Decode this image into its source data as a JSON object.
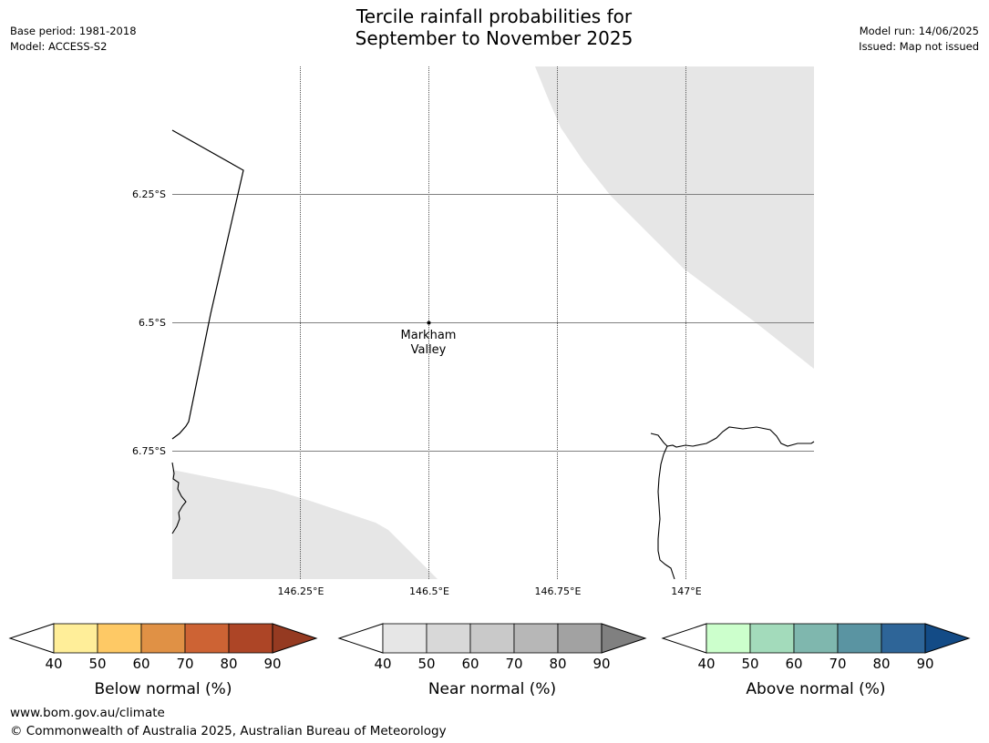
{
  "title": {
    "line1": "Tercile rainfall probabilities for",
    "line2": "September to November 2025"
  },
  "meta": {
    "base_period": "Base period: 1981-2018",
    "model": "Model: ACCESS-S2",
    "model_run": "Model run: 14/06/2025",
    "issued": "Issued: Map not issued"
  },
  "map": {
    "lon_ticks": [
      "146.25°E",
      "146.5°E",
      "146.75°E",
      "147°E"
    ],
    "lat_ticks": [
      "6.25°S",
      "6.5°S",
      "6.75°S"
    ],
    "location": {
      "name_line1": "Markham",
      "name_line2": "Valley"
    },
    "grid_color": "#808080",
    "nodata_color": "#e6e6e6"
  },
  "colorbars": [
    {
      "label": "Below normal (%)",
      "ticks": [
        "40",
        "50",
        "60",
        "70",
        "80",
        "90"
      ],
      "colors": [
        "#ffee99",
        "#fec965",
        "#e09145",
        "#cd6334",
        "#ad4526"
      ],
      "end_color": "#953a21"
    },
    {
      "label": "Near normal (%)",
      "ticks": [
        "40",
        "50",
        "60",
        "70",
        "80",
        "90"
      ],
      "colors": [
        "#e6e6e6",
        "#d8d8d8",
        "#c9c9c9",
        "#b7b7b7",
        "#a2a2a2"
      ],
      "end_color": "#808080"
    },
    {
      "label": "Above normal (%)",
      "ticks": [
        "40",
        "50",
        "60",
        "70",
        "80",
        "90"
      ],
      "colors": [
        "#ccffcc",
        "#a3dbbb",
        "#7fb7ae",
        "#5a94a2",
        "#2e6598"
      ],
      "end_color": "#134b86"
    }
  ],
  "footer": {
    "url": "www.bom.gov.au/climate",
    "copyright": "© Commonwealth of Australia 2025, Australian Bureau of Meteorology"
  }
}
